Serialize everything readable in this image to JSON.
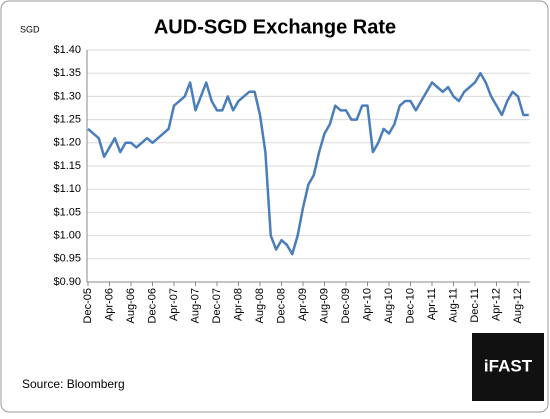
{
  "chart_data": {
    "type": "line",
    "title": "AUD-SGD Exchange Rate",
    "y_unit": "SGD",
    "source": "Source: Bloomberg",
    "logo": "iFAST",
    "color": "#4a7ebb",
    "grid": true,
    "categories": [
      "Dec-05",
      null,
      null,
      null,
      "Apr-06",
      null,
      null,
      null,
      "Aug-06",
      null,
      null,
      null,
      "Dec-06",
      null,
      null,
      null,
      "Apr-07",
      null,
      null,
      null,
      "Aug-07",
      null,
      null,
      null,
      "Dec-07",
      null,
      null,
      null,
      "Apr-08",
      null,
      null,
      null,
      "Aug-08",
      null,
      null,
      null,
      "Dec-08",
      null,
      null,
      null,
      "Apr-09",
      null,
      null,
      null,
      "Aug-09",
      null,
      null,
      null,
      "Dec-09",
      null,
      null,
      null,
      "Apr-10",
      null,
      null,
      null,
      "Aug-10",
      null,
      null,
      null,
      "Dec-10",
      null,
      null,
      null,
      "Apr-11",
      null,
      null,
      null,
      "Aug-11",
      null,
      null,
      null,
      "Dec-11",
      null,
      null,
      null,
      "Apr-12",
      null,
      null,
      null,
      "Aug-12",
      null,
      null
    ],
    "values": [
      1.23,
      1.22,
      1.21,
      1.17,
      1.19,
      1.21,
      1.18,
      1.2,
      1.2,
      1.19,
      1.2,
      1.21,
      1.2,
      1.21,
      1.22,
      1.23,
      1.28,
      1.29,
      1.3,
      1.33,
      1.27,
      1.3,
      1.33,
      1.29,
      1.27,
      1.27,
      1.3,
      1.27,
      1.29,
      1.3,
      1.31,
      1.31,
      1.26,
      1.18,
      1.0,
      0.97,
      0.99,
      0.98,
      0.96,
      1.0,
      1.06,
      1.11,
      1.13,
      1.18,
      1.22,
      1.24,
      1.28,
      1.27,
      1.27,
      1.25,
      1.25,
      1.28,
      1.28,
      1.18,
      1.2,
      1.23,
      1.22,
      1.24,
      1.28,
      1.29,
      1.29,
      1.27,
      1.29,
      1.31,
      1.33,
      1.32,
      1.31,
      1.32,
      1.3,
      1.29,
      1.31,
      1.32,
      1.33,
      1.35,
      1.33,
      1.3,
      1.28,
      1.26,
      1.29,
      1.31,
      1.3,
      1.26,
      1.26
    ],
    "ylim": [
      0.9,
      1.4
    ],
    "yticks": [
      {
        "value": 0.9,
        "label": "$0.90"
      },
      {
        "value": 0.95,
        "label": "$0.95"
      },
      {
        "value": 1.0,
        "label": "$1.00"
      },
      {
        "value": 1.05,
        "label": "$1.05"
      },
      {
        "value": 1.1,
        "label": "$1.10"
      },
      {
        "value": 1.15,
        "label": "$1.15"
      },
      {
        "value": 1.2,
        "label": "$1.20"
      },
      {
        "value": 1.25,
        "label": "$1.25"
      },
      {
        "value": 1.3,
        "label": "$1.30"
      },
      {
        "value": 1.35,
        "label": "$1.35"
      },
      {
        "value": 1.4,
        "label": "$1.40"
      }
    ]
  }
}
